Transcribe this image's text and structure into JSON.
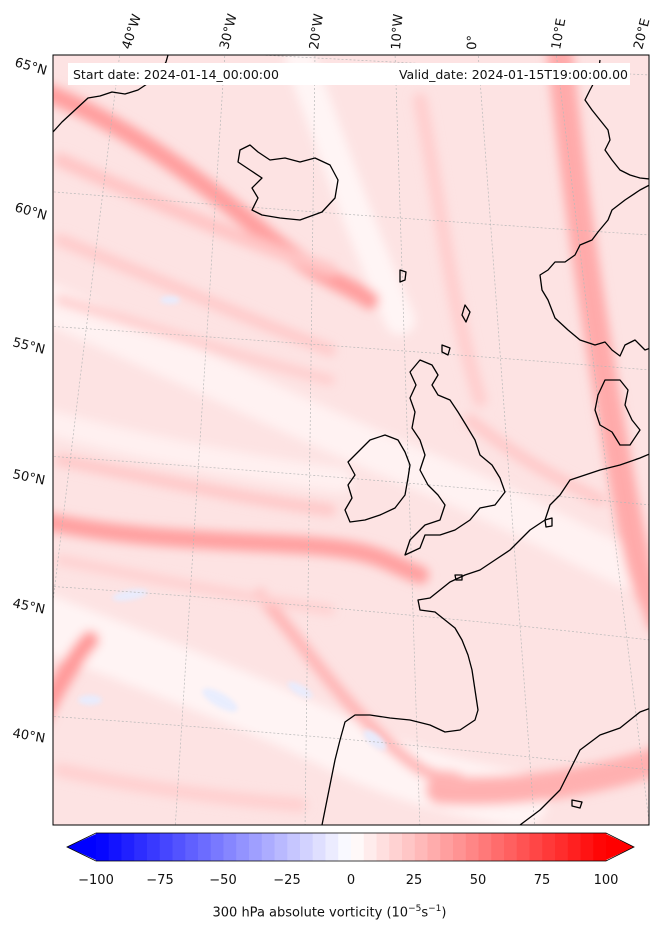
{
  "header": {
    "start_date": "Start date: 2024-01-14_00:00:00",
    "valid_date": "Valid_date: 2024-01-15T19:00:00.00"
  },
  "lon_labels": [
    "40°W",
    "30°W",
    "20°W",
    "10°W",
    "0°",
    "10°E",
    "20°E"
  ],
  "lat_labels": [
    "65°N",
    "60°N",
    "55°N",
    "50°N",
    "45°N",
    "40°N"
  ],
  "colorbar": {
    "ticks": [
      "−100",
      "−75",
      "−50",
      "−25",
      "0",
      "25",
      "50",
      "75",
      "100"
    ],
    "title_prefix": "300 hPa absolute vorticity (10",
    "title_exp1": "−5",
    "title_mid": "s",
    "title_exp2": "−1",
    "title_suffix": ")",
    "min_color": "#0000ff",
    "mid_color": "#ffffff",
    "max_color": "#ff0000"
  }
}
